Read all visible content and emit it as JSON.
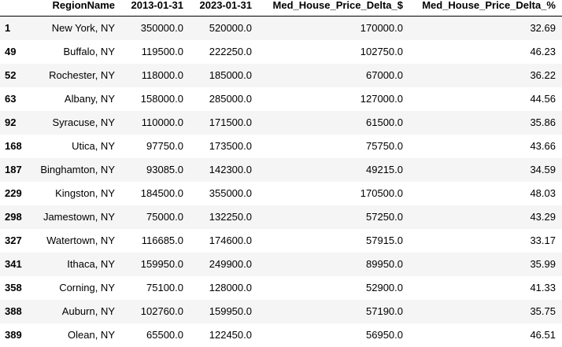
{
  "table": {
    "columns": [
      "",
      "RegionName",
      "2013-01-31",
      "2023-01-31",
      "Med_House_Price_Delta_$",
      "Med_House_Price_Delta_%"
    ],
    "rows": [
      {
        "index": "1",
        "region": "New York, NY",
        "y2013": "350000.0",
        "y2023": "520000.0",
        "delta_usd": "170000.0",
        "delta_pct": "32.69"
      },
      {
        "index": "49",
        "region": "Buffalo, NY",
        "y2013": "119500.0",
        "y2023": "222250.0",
        "delta_usd": "102750.0",
        "delta_pct": "46.23"
      },
      {
        "index": "52",
        "region": "Rochester, NY",
        "y2013": "118000.0",
        "y2023": "185000.0",
        "delta_usd": "67000.0",
        "delta_pct": "36.22"
      },
      {
        "index": "63",
        "region": "Albany, NY",
        "y2013": "158000.0",
        "y2023": "285000.0",
        "delta_usd": "127000.0",
        "delta_pct": "44.56"
      },
      {
        "index": "92",
        "region": "Syracuse, NY",
        "y2013": "110000.0",
        "y2023": "171500.0",
        "delta_usd": "61500.0",
        "delta_pct": "35.86"
      },
      {
        "index": "168",
        "region": "Utica, NY",
        "y2013": "97750.0",
        "y2023": "173500.0",
        "delta_usd": "75750.0",
        "delta_pct": "43.66"
      },
      {
        "index": "187",
        "region": "Binghamton, NY",
        "y2013": "93085.0",
        "y2023": "142300.0",
        "delta_usd": "49215.0",
        "delta_pct": "34.59"
      },
      {
        "index": "229",
        "region": "Kingston, NY",
        "y2013": "184500.0",
        "y2023": "355000.0",
        "delta_usd": "170500.0",
        "delta_pct": "48.03"
      },
      {
        "index": "298",
        "region": "Jamestown, NY",
        "y2013": "75000.0",
        "y2023": "132250.0",
        "delta_usd": "57250.0",
        "delta_pct": "43.29"
      },
      {
        "index": "327",
        "region": "Watertown, NY",
        "y2013": "116685.0",
        "y2023": "174600.0",
        "delta_usd": "57915.0",
        "delta_pct": "33.17"
      },
      {
        "index": "341",
        "region": "Ithaca, NY",
        "y2013": "159950.0",
        "y2023": "249900.0",
        "delta_usd": "89950.0",
        "delta_pct": "35.99"
      },
      {
        "index": "358",
        "region": "Corning, NY",
        "y2013": "75100.0",
        "y2023": "128000.0",
        "delta_usd": "52900.0",
        "delta_pct": "41.33"
      },
      {
        "index": "388",
        "region": "Auburn, NY",
        "y2013": "102760.0",
        "y2023": "159950.0",
        "delta_usd": "57190.0",
        "delta_pct": "35.75"
      },
      {
        "index": "389",
        "region": "Olean, NY",
        "y2013": "65500.0",
        "y2023": "122450.0",
        "delta_usd": "56950.0",
        "delta_pct": "46.51"
      }
    ]
  }
}
